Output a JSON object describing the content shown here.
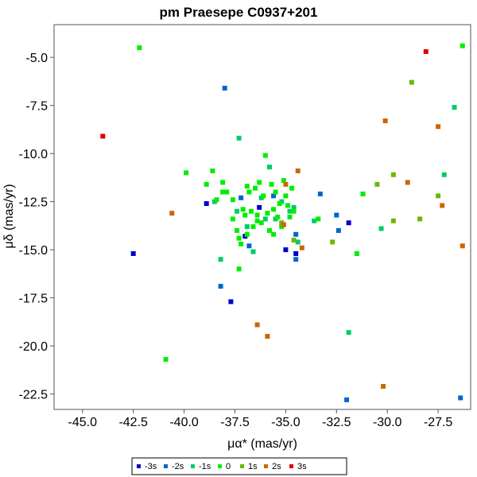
{
  "chart_data": {
    "type": "scatter",
    "title": "pm Praesepe  C0937+201",
    "xlabel": "μα* (mas/yr)",
    "ylabel": "μδ (mas/yr)",
    "xlim": [
      -46.4,
      -25.9
    ],
    "ylim": [
      -23.3,
      -3.3
    ],
    "xticks": [
      -45.0,
      -42.5,
      -40.0,
      -37.5,
      -35.0,
      -32.5,
      -30.0,
      -27.5
    ],
    "xtick_labels": [
      "-45.0",
      "-42.5",
      "-40.0",
      "-37.5",
      "-35.0",
      "-32.5",
      "-30.0",
      "-27.5"
    ],
    "yticks": [
      -5.0,
      -7.5,
      -10.0,
      -12.5,
      -15.0,
      -17.5,
      -20.0,
      -22.5
    ],
    "ytick_labels": [
      "-5.0",
      "-7.5",
      "-10.0",
      "-12.5",
      "-15.0",
      "-17.5",
      "-20.0",
      "-22.5"
    ],
    "grid": false,
    "legend_position": "bottom-center",
    "series": [
      {
        "name": "-3s",
        "color": "#0000cc",
        "points": [
          [
            -42.5,
            -15.2
          ],
          [
            -38.9,
            -12.6
          ],
          [
            -37.7,
            -17.7
          ],
          [
            -35.0,
            -15.0
          ],
          [
            -36.3,
            -12.8
          ],
          [
            -34.5,
            -15.2
          ],
          [
            -31.9,
            -13.6
          ],
          [
            -37.0,
            -14.3
          ]
        ]
      },
      {
        "name": "-2s",
        "color": "#0066cc",
        "points": [
          [
            -38.0,
            -6.6
          ],
          [
            -38.2,
            -16.9
          ],
          [
            -36.8,
            -14.8
          ],
          [
            -34.5,
            -15.5
          ],
          [
            -34.5,
            -14.2
          ],
          [
            -33.3,
            -12.1
          ],
          [
            -32.5,
            -13.2
          ],
          [
            -32.4,
            -14.0
          ],
          [
            -32.0,
            -22.8
          ],
          [
            -26.4,
            -22.7
          ],
          [
            -37.2,
            -12.3
          ],
          [
            -35.6,
            -12.2
          ]
        ]
      },
      {
        "name": "-1s",
        "color": "#00cc66",
        "points": [
          [
            -37.3,
            -9.2
          ],
          [
            -35.8,
            -10.7
          ],
          [
            -38.2,
            -15.5
          ],
          [
            -36.6,
            -15.1
          ],
          [
            -31.9,
            -19.3
          ],
          [
            -30.3,
            -13.9
          ],
          [
            -26.7,
            -7.6
          ],
          [
            -27.2,
            -11.1
          ],
          [
            -38.5,
            -12.5
          ],
          [
            -36.9,
            -13.8
          ],
          [
            -35.5,
            -13.4
          ],
          [
            -34.8,
            -13.0
          ],
          [
            -34.6,
            -12.8
          ],
          [
            -33.6,
            -13.5
          ],
          [
            -34.4,
            -14.6
          ],
          [
            -36.2,
            -12.3
          ],
          [
            -36.0,
            -13.4
          ],
          [
            -37.4,
            -13.0
          ],
          [
            -35.2,
            -12.5
          ]
        ]
      },
      {
        "name": "0",
        "color": "#00ee00",
        "points": [
          [
            -42.2,
            -4.5
          ],
          [
            -40.9,
            -20.7
          ],
          [
            -39.9,
            -11.0
          ],
          [
            -38.6,
            -10.9
          ],
          [
            -38.9,
            -11.6
          ],
          [
            -38.1,
            -11.5
          ],
          [
            -38.4,
            -12.4
          ],
          [
            -38.1,
            -12.0
          ],
          [
            -37.9,
            -12.0
          ],
          [
            -37.6,
            -12.4
          ],
          [
            -37.6,
            -13.4
          ],
          [
            -37.4,
            -14.0
          ],
          [
            -37.3,
            -14.4
          ],
          [
            -37.2,
            -14.7
          ],
          [
            -37.0,
            -13.2
          ],
          [
            -36.9,
            -11.7
          ],
          [
            -36.8,
            -12.0
          ],
          [
            -36.7,
            -13.0
          ],
          [
            -36.6,
            -13.8
          ],
          [
            -36.5,
            -11.8
          ],
          [
            -36.4,
            -13.2
          ],
          [
            -36.3,
            -11.5
          ],
          [
            -36.2,
            -13.6
          ],
          [
            -36.1,
            -12.2
          ],
          [
            -36.0,
            -10.1
          ],
          [
            -35.9,
            -13.1
          ],
          [
            -35.8,
            -14.0
          ],
          [
            -35.7,
            -11.6
          ],
          [
            -35.6,
            -12.9
          ],
          [
            -35.5,
            -12.0
          ],
          [
            -35.4,
            -13.3
          ],
          [
            -35.3,
            -12.6
          ],
          [
            -35.2,
            -13.8
          ],
          [
            -35.1,
            -11.4
          ],
          [
            -35.0,
            -12.2
          ],
          [
            -34.9,
            -12.7
          ],
          [
            -34.8,
            -13.3
          ],
          [
            -34.7,
            -11.8
          ],
          [
            -34.6,
            -13.0
          ],
          [
            -33.4,
            -13.4
          ],
          [
            -31.2,
            -12.1
          ],
          [
            -31.5,
            -15.2
          ],
          [
            -26.3,
            -4.4
          ],
          [
            -36.4,
            -13.5
          ],
          [
            -37.1,
            -12.9
          ],
          [
            -35.6,
            -14.2
          ],
          [
            -36.9,
            -14.2
          ],
          [
            -37.3,
            -16.0
          ]
        ]
      },
      {
        "name": "1s",
        "color": "#66bb00",
        "points": [
          [
            -28.8,
            -6.3
          ],
          [
            -29.7,
            -11.1
          ],
          [
            -30.5,
            -11.6
          ],
          [
            -29.7,
            -13.5
          ],
          [
            -28.4,
            -13.4
          ],
          [
            -27.5,
            -12.2
          ],
          [
            -32.7,
            -14.6
          ],
          [
            -34.6,
            -14.5
          ],
          [
            -35.2,
            -13.6
          ]
        ]
      },
      {
        "name": "2s",
        "color": "#cc6600",
        "points": [
          [
            -40.6,
            -13.1
          ],
          [
            -30.1,
            -8.3
          ],
          [
            -27.5,
            -8.6
          ],
          [
            -29.0,
            -11.5
          ],
          [
            -27.3,
            -12.7
          ],
          [
            -26.3,
            -14.8
          ],
          [
            -30.2,
            -22.1
          ],
          [
            -34.4,
            -10.9
          ],
          [
            -35.0,
            -11.6
          ],
          [
            -34.2,
            -14.9
          ],
          [
            -35.1,
            -13.7
          ],
          [
            -36.4,
            -18.9
          ],
          [
            -35.9,
            -19.5
          ]
        ]
      },
      {
        "name": "3s",
        "color": "#dd0000",
        "points": [
          [
            -44.0,
            -9.1
          ],
          [
            -28.1,
            -4.7
          ]
        ]
      }
    ]
  }
}
